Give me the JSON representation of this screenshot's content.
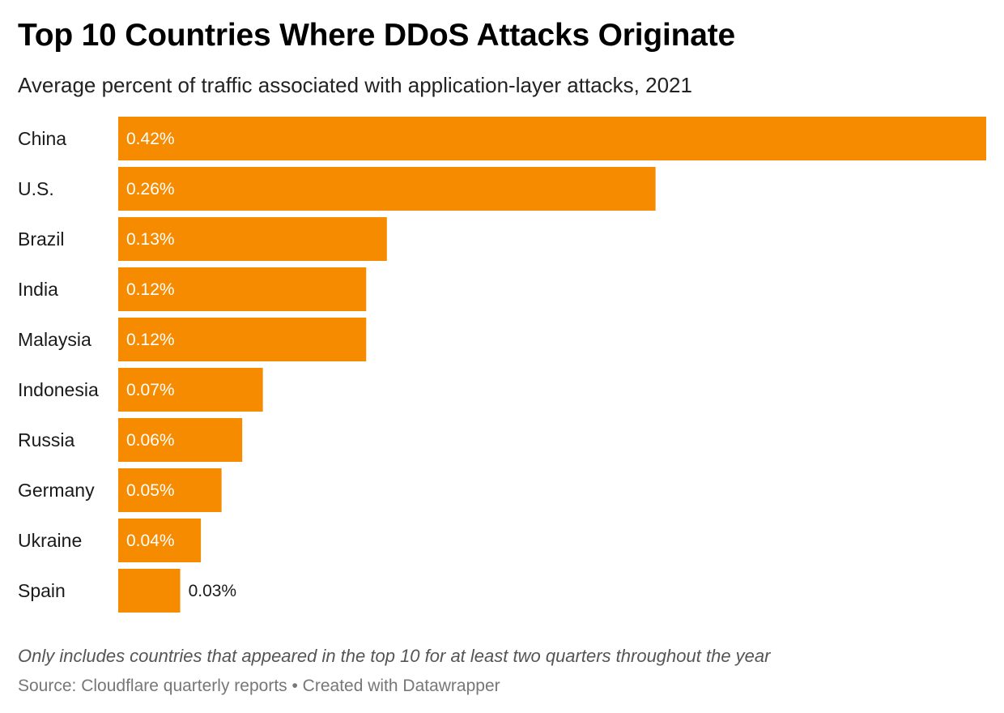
{
  "chart_data": {
    "type": "bar",
    "orientation": "horizontal",
    "title": "Top 10 Countries Where DDoS Attacks Originate",
    "subtitle": "Average percent of traffic associated with application-layer attacks, 2021",
    "categories": [
      "China",
      "U.S.",
      "Brazil",
      "India",
      "Malaysia",
      "Indonesia",
      "Russia",
      "Germany",
      "Ukraine",
      "Spain"
    ],
    "values": [
      0.42,
      0.26,
      0.13,
      0.12,
      0.12,
      0.07,
      0.06,
      0.05,
      0.04,
      0.03
    ],
    "value_labels": [
      "0.42%",
      "0.26%",
      "0.13%",
      "0.12%",
      "0.12%",
      "0.07%",
      "0.06%",
      "0.05%",
      "0.04%",
      "0.03%"
    ],
    "xlim": [
      0,
      0.42
    ],
    "bar_color": "#f68b00",
    "grid": false,
    "note": "Only includes countries that appeared in the top 10 for at least two quarters throughout the year",
    "source": "Source: Cloudflare quarterly reports • Created with Datawrapper"
  }
}
